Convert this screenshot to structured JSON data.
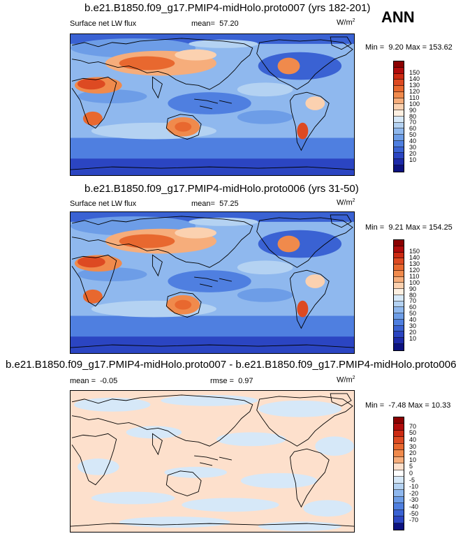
{
  "season": "ANN",
  "panels": [
    {
      "title": "b.e21.B1850.f09_g17.PMIP4-midHolo.proto007 (yrs 182-201)",
      "variable": "Surface net LW flux",
      "mean_label": "mean=",
      "mean_value": "57.20",
      "units": "W/m",
      "units_sup": "2",
      "min_label": "Min =",
      "min_value": "9.20",
      "max_label": "Max =",
      "max_value": "153.62",
      "colorbar": {
        "ticks": [
          "150",
          "140",
          "130",
          "120",
          "110",
          "100",
          "90",
          "80",
          "70",
          "60",
          "50",
          "40",
          "30",
          "20",
          "10"
        ],
        "colors": [
          "#8b0000",
          "#b00b0b",
          "#cc2a12",
          "#dd4a22",
          "#e8682f",
          "#f08a4c",
          "#f6ad7b",
          "#fbd1b0",
          "#fdf0e2",
          "#d6e8f8",
          "#b4d2f2",
          "#8fb8ee",
          "#6d9de7",
          "#4f7fe0",
          "#3a62d3",
          "#2b45c2",
          "#1d2aa8",
          "#0c1280"
        ]
      }
    },
    {
      "title": "b.e21.B1850.f09_g17.PMIP4-midHolo.proto006 (yrs 31-50)",
      "variable": "Surface net LW flux",
      "mean_label": "mean=",
      "mean_value": "57.25",
      "units": "W/m",
      "units_sup": "2",
      "min_label": "Min =",
      "min_value": "9.21",
      "max_label": "Max =",
      "max_value": "154.25",
      "colorbar": {
        "ticks": [
          "150",
          "140",
          "130",
          "120",
          "110",
          "100",
          "90",
          "80",
          "70",
          "60",
          "50",
          "40",
          "30",
          "20",
          "10"
        ],
        "colors": [
          "#8b0000",
          "#b00b0b",
          "#cc2a12",
          "#dd4a22",
          "#e8682f",
          "#f08a4c",
          "#f6ad7b",
          "#fbd1b0",
          "#fdf0e2",
          "#d6e8f8",
          "#b4d2f2",
          "#8fb8ee",
          "#6d9de7",
          "#4f7fe0",
          "#3a62d3",
          "#2b45c2",
          "#1d2aa8",
          "#0c1280"
        ]
      }
    },
    {
      "title": "b.e21.B1850.f09_g17.PMIP4-midHolo.proto007 - b.e21.B1850.f09_g17.PMIP4-midHolo.proto006",
      "mean_label": "mean =",
      "mean_value": "-0.05",
      "rmse_label": "rmse =",
      "rmse_value": "0.97",
      "units": "W/m",
      "units_sup": "2",
      "min_label": "Min =",
      "min_value": "-7.48",
      "max_label": "Max =",
      "max_value": "10.33",
      "colorbar": {
        "ticks": [
          "70",
          "50",
          "40",
          "30",
          "20",
          "10",
          "5",
          "0",
          "-5",
          "-10",
          "-20",
          "-30",
          "-40",
          "-50",
          "-70"
        ],
        "colors": [
          "#8b0000",
          "#b00b0b",
          "#cc2a12",
          "#dd4a22",
          "#e8682f",
          "#f08a4c",
          "#f6ad7b",
          "#fde0cc",
          "#ffffff",
          "#d6e8f8",
          "#b4d2f2",
          "#8fb8ee",
          "#6d9de7",
          "#4f7fe0",
          "#3a62d3",
          "#2b45c2",
          "#0c1280"
        ]
      }
    }
  ]
}
